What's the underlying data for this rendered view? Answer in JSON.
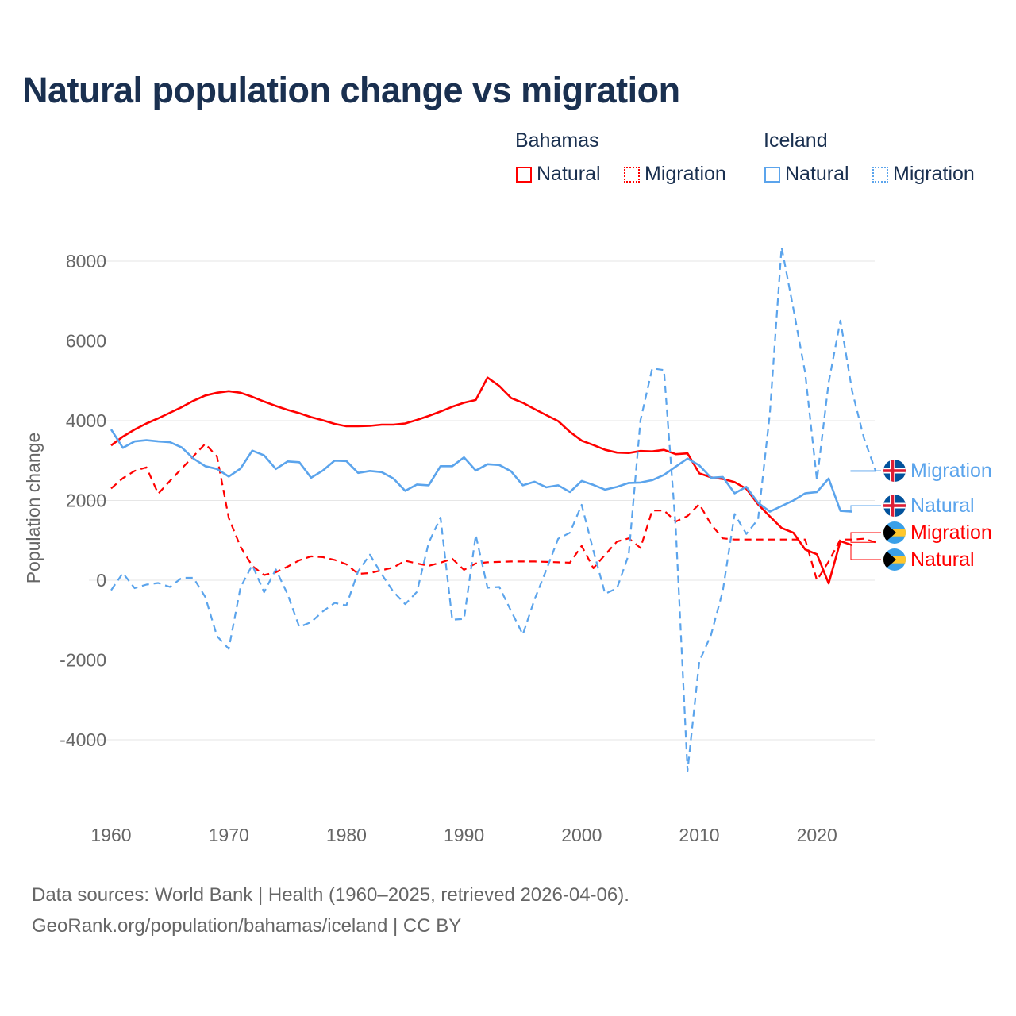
{
  "title": "Natural population change vs migration",
  "legend": {
    "groups": [
      {
        "name": "Bahamas",
        "items": [
          "Natural",
          "Migration"
        ],
        "color": "#ff0000"
      },
      {
        "name": "Iceland",
        "items": [
          "Natural",
          "Migration"
        ],
        "color": "#5ba4ec"
      }
    ]
  },
  "footer": {
    "line1": "Data sources: World Bank | Health (1960–2025, retrieved 2026-04-06).",
    "line2": "GeoRank.org/population/bahamas/iceland | CC BY"
  },
  "chart_data": {
    "type": "line",
    "title": "Natural population change vs migration",
    "xlabel": "",
    "ylabel": "Population change",
    "xlim": [
      1960,
      2025
    ],
    "ylim": [
      -5000,
      9000
    ],
    "xticks": [
      1960,
      1970,
      1980,
      1990,
      2000,
      2010,
      2020
    ],
    "yticks": [
      -4000,
      -2000,
      0,
      2000,
      4000,
      6000,
      8000
    ],
    "grid": true,
    "legend_position": "top-right",
    "series": [
      {
        "name": "Bahamas Natural",
        "label": "Natural",
        "country": "Bahamas",
        "color": "#ff0000",
        "dash": false,
        "start": 1960,
        "values": [
          3380,
          3600,
          3780,
          3930,
          4060,
          4200,
          4340,
          4500,
          4630,
          4700,
          4740,
          4700,
          4600,
          4480,
          4370,
          4270,
          4190,
          4090,
          4010,
          3920,
          3860,
          3860,
          3870,
          3900,
          3900,
          3930,
          4020,
          4120,
          4230,
          4350,
          4450,
          4520,
          5080,
          4870,
          4570,
          4450,
          4290,
          4140,
          3990,
          3720,
          3500,
          3390,
          3270,
          3200,
          3190,
          3240,
          3230,
          3270,
          3160,
          3180,
          2680,
          2580,
          2540,
          2460,
          2290,
          1900,
          1600,
          1310,
          1190,
          770,
          650,
          -80,
          980,
          880
        ]
      },
      {
        "name": "Bahamas Migration",
        "label": "Migration",
        "country": "Bahamas",
        "color": "#ff0000",
        "dash": true,
        "start": 1960,
        "values": [
          2300,
          2560,
          2740,
          2830,
          2170,
          2490,
          2800,
          3110,
          3420,
          3100,
          1560,
          840,
          360,
          130,
          200,
          340,
          500,
          600,
          580,
          510,
          400,
          160,
          180,
          250,
          320,
          490,
          420,
          360,
          440,
          540,
          260,
          420,
          450,
          460,
          470,
          470,
          470,
          460,
          450,
          440,
          860,
          300,
          640,
          970,
          1050,
          810,
          1750,
          1750,
          1470,
          1610,
          1910,
          1400,
          1050,
          1020,
          1020,
          1020,
          1020,
          1020,
          1020,
          1020,
          0,
          470,
          1020,
          1020,
          1040,
          950
        ]
      },
      {
        "name": "Iceland Natural",
        "label": "Natural",
        "country": "Iceland",
        "color": "#5ba4ec",
        "dash": false,
        "start": 1960,
        "values": [
          3780,
          3320,
          3480,
          3510,
          3480,
          3460,
          3330,
          3050,
          2860,
          2790,
          2600,
          2800,
          3250,
          3130,
          2790,
          2980,
          2960,
          2570,
          2750,
          3000,
          2990,
          2690,
          2740,
          2710,
          2550,
          2240,
          2400,
          2380,
          2860,
          2860,
          3080,
          2750,
          2910,
          2890,
          2730,
          2380,
          2470,
          2330,
          2380,
          2210,
          2490,
          2390,
          2270,
          2340,
          2440,
          2450,
          2510,
          2640,
          2850,
          3050,
          2880,
          2570,
          2590,
          2180,
          2340,
          1940,
          1720,
          1860,
          2000,
          2180,
          2210,
          2550,
          1740,
          1720
        ]
      },
      {
        "name": "Iceland Migration",
        "label": "Migration",
        "country": "Iceland",
        "color": "#5ba4ec",
        "dash": true,
        "start": 1960,
        "values": [
          -250,
          180,
          -200,
          -110,
          -70,
          -170,
          60,
          60,
          -420,
          -1400,
          -1720,
          -180,
          380,
          -300,
          270,
          -350,
          -1170,
          -1050,
          -780,
          -570,
          -630,
          220,
          640,
          150,
          -290,
          -600,
          -290,
          940,
          1570,
          -990,
          -970,
          1130,
          -190,
          -170,
          -770,
          -1360,
          -480,
          260,
          1040,
          1190,
          1890,
          740,
          -340,
          -200,
          640,
          4010,
          5310,
          5270,
          1290,
          -4780,
          -2040,
          -1370,
          -270,
          1660,
          1160,
          1530,
          4180,
          8350,
          6800,
          5200,
          2510,
          4960,
          6510,
          4730,
          3560,
          2730
        ]
      }
    ]
  }
}
